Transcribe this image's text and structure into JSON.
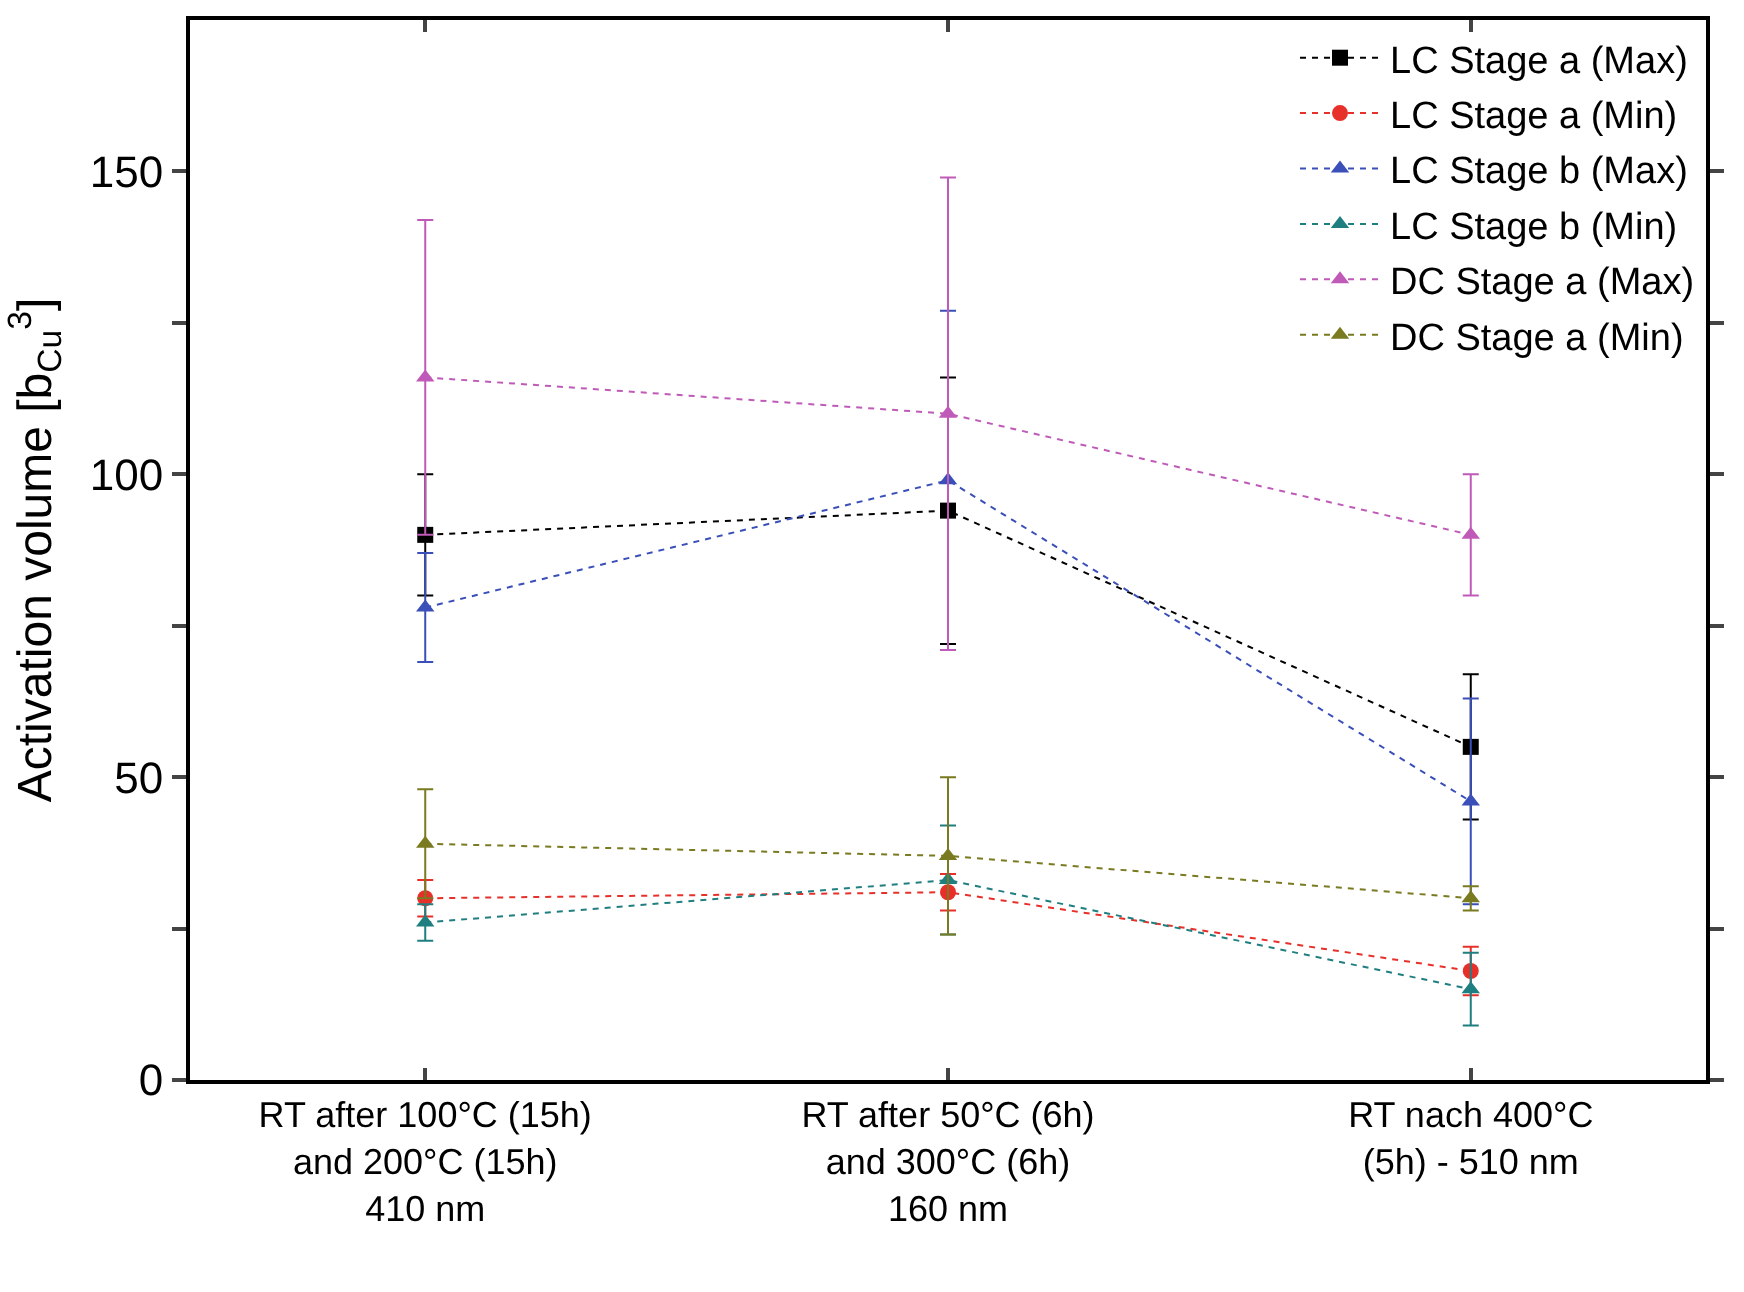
{
  "chart_data": {
    "type": "line",
    "ylabel": "Activation volume [b$_{Cu}$$^{3}$]",
    "categories": [
      "RT after 100°C (15h)\nand 200°C (15h)\n410 nm",
      "RT after 50°C (6h)\nand 300°C (6h)\n160 nm",
      "RT nach 400°C\n(5h) - 510 nm"
    ],
    "ylim": [
      0,
      175
    ],
    "yticks": [
      0,
      {
        "value": 25,
        "label": null
      },
      50,
      {
        "value": 75,
        "label": null
      },
      100,
      {
        "value": 125,
        "label": null
      },
      150
    ],
    "grid": false,
    "legend": "top right",
    "line_style": "dotted",
    "series": [
      {
        "name": "LC Stage a (Max)",
        "color": "#000000",
        "marker": "square",
        "values": [
          90,
          94,
          55
        ],
        "errors": [
          10,
          22,
          12
        ]
      },
      {
        "name": "LC Stage a (Min)",
        "color": "#e8302a",
        "marker": "circle",
        "values": [
          30,
          31,
          18
        ],
        "errors": [
          3,
          3,
          4
        ]
      },
      {
        "name": "LC Stage b (Max)",
        "color": "#3a4fb8",
        "marker": "triangle",
        "values": [
          78,
          99,
          46
        ],
        "errors": [
          9,
          28,
          17
        ]
      },
      {
        "name": "LC Stage b (Min)",
        "color": "#1f7f80",
        "marker": "triangle",
        "values": [
          26,
          33,
          15
        ],
        "errors": [
          3,
          9,
          6
        ]
      },
      {
        "name": "DC Stage a (Max)",
        "color": "#c05ab8",
        "marker": "triangle",
        "values": [
          116,
          110,
          90
        ],
        "errors": [
          26,
          39,
          10
        ]
      },
      {
        "name": "DC Stage a (Min)",
        "color": "#7a7a20",
        "marker": "triangle",
        "values": [
          39,
          37,
          30
        ],
        "errors": [
          9,
          13,
          2
        ]
      }
    ]
  }
}
